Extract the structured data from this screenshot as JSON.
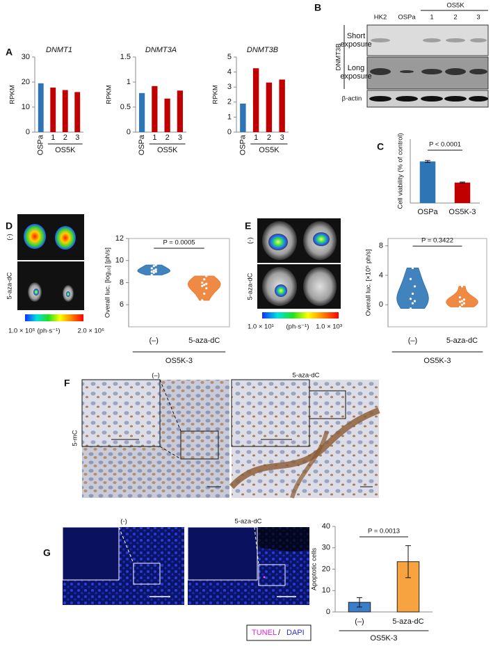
{
  "panel_labels": [
    "A",
    "B",
    "C",
    "D",
    "E",
    "F",
    "G"
  ],
  "blot": {
    "lanes": [
      "HK2",
      "OSPa",
      "1",
      "2",
      "3"
    ],
    "group_label": "OS5K",
    "protein": "DNMT3B",
    "exposures": [
      [
        "Short",
        "exposure"
      ],
      [
        "Long",
        "exposure"
      ]
    ],
    "loading": "β-actin"
  },
  "imaging_d": {
    "rows": [
      "(-)",
      "5-aza-dC"
    ],
    "scale_min": "1.0 × 10⁵",
    "scale_unit": "(ph·s⁻¹)",
    "scale_max": "2.0 × 10⁶"
  },
  "imaging_e": {
    "rows": [
      "(-)",
      "5-aza-dC"
    ],
    "scale_min": "1.0 × 10¹",
    "scale_unit": "(ph·s⁻¹)",
    "scale_max": "1.0 × 10³"
  },
  "ihc_f": {
    "columns": [
      "(–)",
      "5-aza-dC"
    ],
    "row": "5-mC"
  },
  "tunel_g": {
    "columns": [
      "(-)",
      "5-aza-dC"
    ],
    "stain_1": "TUNEL",
    "separator": "/",
    "stain_2": "DAPI"
  },
  "chart_data": [
    {
      "type": "bar",
      "title": "DNMT1",
      "ylabel": "RPKM",
      "categories": [
        "OSPa",
        "1",
        "2",
        "3"
      ],
      "group_label": "OS5K",
      "values": [
        19.5,
        17.8,
        16.8,
        16.0
      ],
      "colors": [
        "#2e75b6",
        "#c00000",
        "#c00000",
        "#c00000"
      ],
      "ylim": [
        0,
        30
      ],
      "yticks": [
        0,
        10,
        20,
        30
      ]
    },
    {
      "type": "bar",
      "title": "DNMT3A",
      "ylabel": "RPKM",
      "categories": [
        "OSPa",
        "1",
        "2",
        "3"
      ],
      "group_label": "OS5K",
      "values": [
        0.78,
        0.92,
        0.67,
        0.83
      ],
      "colors": [
        "#2e75b6",
        "#c00000",
        "#c00000",
        "#c00000"
      ],
      "ylim": [
        0,
        1.5
      ],
      "yticks": [
        0,
        0.5,
        1,
        1.5
      ]
    },
    {
      "type": "bar",
      "title": "DNMT3B",
      "ylabel": "RPKM",
      "categories": [
        "OSPa",
        "1",
        "2",
        "3"
      ],
      "group_label": "OS5K",
      "values": [
        1.9,
        4.25,
        3.3,
        3.5
      ],
      "colors": [
        "#2e75b6",
        "#c00000",
        "#c00000",
        "#c00000"
      ],
      "ylim": [
        0,
        5
      ],
      "yticks": [
        0,
        1,
        2,
        3,
        4,
        5
      ]
    },
    {
      "type": "bar",
      "ylabel": "Cell viability (% of control)",
      "categories": [
        "OSPa",
        "OS5K-3"
      ],
      "values": [
        65,
        32
      ],
      "errors": [
        1.5,
        0.8
      ],
      "colors": [
        "#2e75b6",
        "#c00000"
      ],
      "ylim": [
        0,
        100
      ],
      "annotation": "P < 0.0001"
    },
    {
      "type": "violin",
      "ylabel": "Overall luc. [log₁₀] [ph/s]",
      "categories": [
        "(–)",
        "5-aza-dC"
      ],
      "group_label": "OS5K-3",
      "points": [
        [
          8.7,
          8.9,
          9.0,
          9.0,
          9.1,
          9.2,
          9.3,
          9.5,
          9.6
        ],
        [
          6.4,
          7.0,
          7.5,
          7.7,
          7.8,
          7.9,
          8.0,
          8.3,
          8.6
        ]
      ],
      "colors": [
        "#2e75b6",
        "#ed7d31"
      ],
      "ylim": [
        4,
        12
      ],
      "yticks": [
        6,
        8,
        10,
        12
      ],
      "annotation": "P = 0.0005"
    },
    {
      "type": "violin",
      "ylabel": "Overall luc. [×10⁵ ph/s]",
      "categories": [
        "(–)",
        "5-aza-dC"
      ],
      "group_label": "OS5K-3",
      "points": [
        [
          -0.5,
          0.2,
          0.5,
          0.8,
          1.5,
          2.5,
          3.5,
          5.0
        ],
        [
          -0.3,
          0,
          0.2,
          0.4,
          0.5,
          0.7,
          1,
          2.5
        ]
      ],
      "colors": [
        "#2e75b6",
        "#ed7d31"
      ],
      "ylim": [
        -3,
        9
      ],
      "yticks": [
        0,
        4,
        8
      ],
      "annotation": "P = 0.3422"
    },
    {
      "type": "bar",
      "ylabel": "Apoptotic cells",
      "categories": [
        "(–)",
        "5-aza-dC"
      ],
      "group_label": "OS5K-3",
      "values": [
        4.5,
        23.5
      ],
      "errors": [
        2.2,
        7.5
      ],
      "colors": [
        "#3a7dc9",
        "#f7a440"
      ],
      "ylim": [
        0,
        40
      ],
      "yticks": [
        0,
        10,
        20,
        30,
        40
      ],
      "annotation": "P = 0.0013"
    }
  ]
}
